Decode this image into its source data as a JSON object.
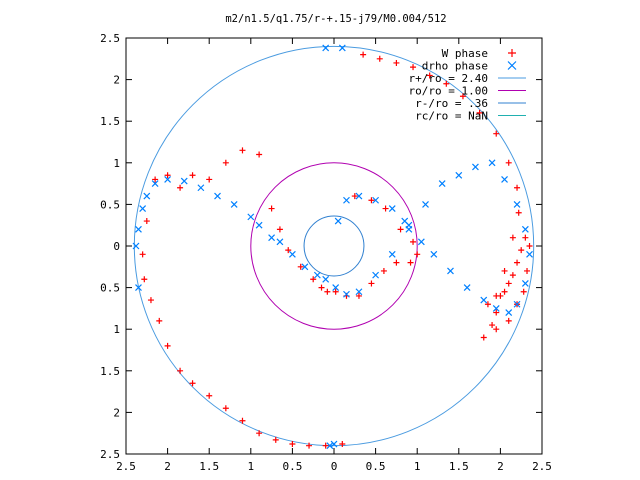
{
  "chart_data": {
    "type": "scatter",
    "title": "m2/n1.5/q1.75/r-+.15-j79/M0.004/512",
    "xlabel": "",
    "ylabel": "",
    "xlim": [
      -2.5,
      2.5
    ],
    "ylim": [
      -2.5,
      2.5
    ],
    "x_ticks": [
      -2.5,
      -2,
      -1.5,
      -1,
      -0.5,
      0,
      0.5,
      1,
      1.5,
      2,
      2.5
    ],
    "x_tick_labels": [
      "2.5",
      "2",
      "1.5",
      "1",
      "0.5",
      "0",
      "0.5",
      "1",
      "1.5",
      "2",
      "2.5"
    ],
    "y_ticks": [
      2.5,
      2,
      1.5,
      1,
      0.5,
      0,
      -0.5,
      -1,
      -1.5,
      -2,
      -2.5
    ],
    "y_tick_labels": [
      "2.5",
      "2",
      "1.5",
      "1",
      "0.5",
      "0",
      "0.5",
      "1",
      "1.5",
      "2",
      "2.5"
    ],
    "grid": false,
    "legend_position": "top-right",
    "series": [
      {
        "name": "W phase",
        "marker": "+",
        "color": "#ff0000",
        "x": [
          0.25,
          0.45,
          0.62,
          0.8,
          0.95,
          1.0,
          0.92,
          0.75,
          0.6,
          0.45,
          0.3,
          0.15,
          0.02,
          -0.08,
          -0.15,
          -0.25,
          -0.4,
          -0.55,
          -0.65,
          -0.75,
          -0.9,
          -1.1,
          -1.3,
          -1.5,
          -1.7,
          -1.85,
          -2.0,
          -2.15,
          -2.25,
          -2.3,
          -2.28,
          -2.2,
          -2.1,
          -2.0,
          -1.85,
          -1.7,
          -1.5,
          -1.3,
          -1.1,
          -0.9,
          -0.7,
          -0.5,
          -0.3,
          -0.1,
          0.1,
          0.35,
          0.55,
          0.75,
          0.95,
          1.15,
          1.35,
          1.55,
          1.75,
          1.95,
          2.1,
          2.2,
          2.22,
          2.15,
          2.05,
          2.0,
          1.95,
          1.9,
          1.85,
          1.95,
          2.05,
          2.1,
          2.15,
          2.2,
          2.25,
          2.3,
          2.35,
          2.32,
          2.28,
          2.2,
          2.1,
          1.95,
          1.8
        ],
        "y": [
          0.6,
          0.55,
          0.45,
          0.2,
          0.05,
          -0.1,
          -0.2,
          -0.2,
          -0.3,
          -0.45,
          -0.6,
          -0.6,
          -0.55,
          -0.55,
          -0.5,
          -0.4,
          -0.25,
          -0.05,
          0.2,
          0.45,
          1.1,
          1.15,
          1.0,
          0.8,
          0.85,
          0.7,
          0.85,
          0.8,
          0.3,
          -0.1,
          -0.4,
          -0.65,
          -0.9,
          -1.2,
          -1.5,
          -1.65,
          -1.8,
          -1.95,
          -2.1,
          -2.25,
          -2.33,
          -2.38,
          -2.4,
          -2.4,
          -2.38,
          2.3,
          2.25,
          2.2,
          2.15,
          2.05,
          1.95,
          1.8,
          1.6,
          1.35,
          1.0,
          0.7,
          0.4,
          0.1,
          -0.3,
          -0.6,
          -0.8,
          -0.95,
          -0.7,
          -0.6,
          -0.55,
          -0.45,
          -0.35,
          -0.2,
          -0.05,
          0.1,
          0.0,
          -0.3,
          -0.55,
          -0.7,
          -0.9,
          -1.0,
          -1.1
        ]
      },
      {
        "name": "drho phase",
        "marker": "x",
        "color": "#0080ff",
        "x": [
          0.05,
          0.15,
          0.3,
          0.5,
          0.7,
          0.85,
          0.9,
          1.05,
          1.2,
          1.4,
          1.6,
          1.8,
          1.95,
          2.1,
          2.2,
          2.3,
          2.35,
          2.3,
          2.2,
          2.05,
          1.9,
          1.7,
          1.5,
          1.3,
          1.1,
          0.9,
          0.7,
          0.5,
          0.3,
          0.15,
          0.02,
          -0.1,
          -0.2,
          -0.35,
          -0.5,
          -0.65,
          -0.75,
          -0.9,
          -1.0,
          -1.2,
          -1.4,
          -1.6,
          -1.8,
          -2.0,
          -2.15,
          -2.25,
          -2.3,
          -2.35,
          -2.38,
          -2.35,
          -0.05,
          0.0,
          0.1,
          -0.1
        ],
        "y": [
          0.3,
          0.55,
          0.6,
          0.55,
          0.45,
          0.3,
          0.2,
          0.05,
          -0.1,
          -0.3,
          -0.5,
          -0.65,
          -0.75,
          -0.8,
          -0.7,
          -0.45,
          -0.1,
          0.2,
          0.5,
          0.8,
          1.0,
          0.95,
          0.85,
          0.75,
          0.5,
          0.25,
          -0.1,
          -0.35,
          -0.55,
          -0.58,
          -0.5,
          -0.4,
          -0.35,
          -0.25,
          -0.1,
          0.05,
          0.1,
          0.25,
          0.35,
          0.5,
          0.6,
          0.7,
          0.78,
          0.8,
          0.75,
          0.6,
          0.45,
          0.2,
          0.0,
          -0.5,
          -2.4,
          -2.38,
          2.38,
          2.38
        ]
      }
    ],
    "circles": [
      {
        "name": "r+/ro = 2.40",
        "radius": 2.4,
        "color": "#4a9be0"
      },
      {
        "name": "ro/ro = 1.00",
        "radius": 1.0,
        "color": "#b000b0"
      },
      {
        "name": "r-/ro = .36",
        "radius": 0.36,
        "color": "#3080d0"
      },
      {
        "name": "rc/ro = NaN",
        "radius": null,
        "color": "#20b0b0"
      }
    ]
  }
}
